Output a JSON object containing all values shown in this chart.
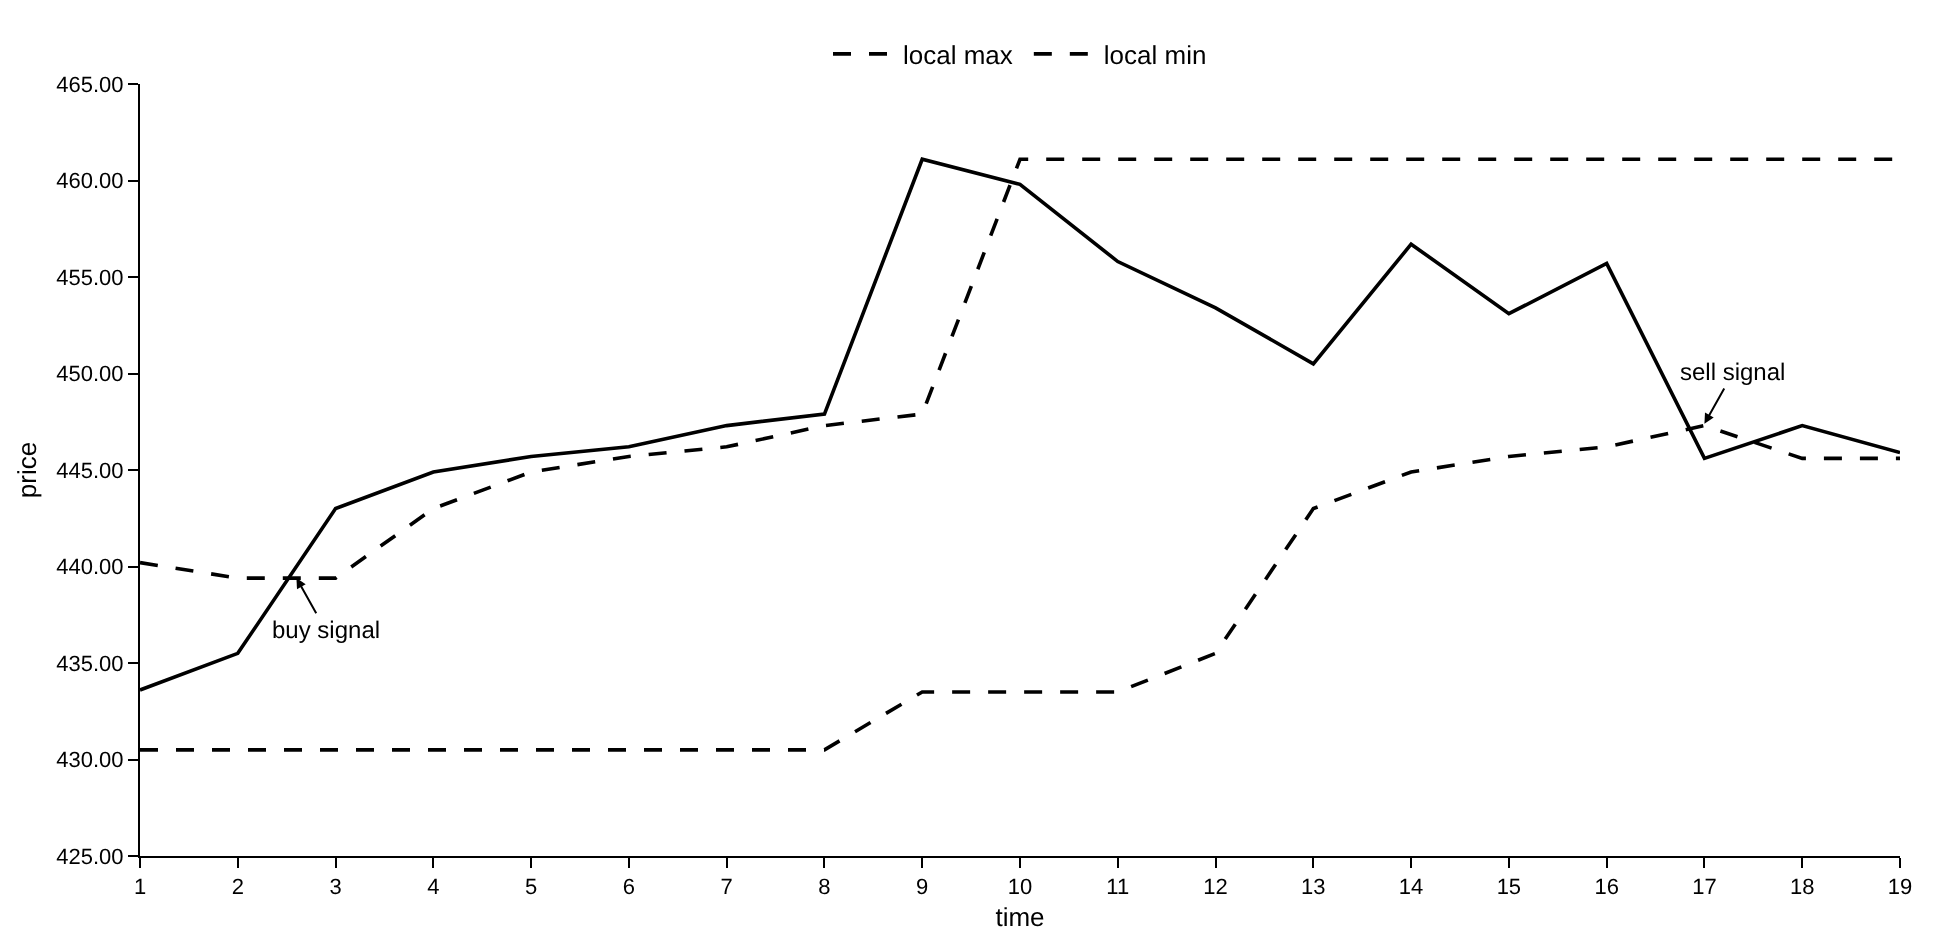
{
  "chart_data": {
    "type": "line",
    "xlabel": "time",
    "ylabel": "price",
    "x": [
      1,
      2,
      3,
      4,
      5,
      6,
      7,
      8,
      9,
      10,
      11,
      12,
      13,
      14,
      15,
      16,
      17,
      18,
      19
    ],
    "series": [
      {
        "color": "#000000",
        "line_style": "solid",
        "values": [
          433.6,
          435.5,
          443.0,
          444.9,
          445.7,
          446.2,
          447.3,
          447.9,
          461.1,
          459.8,
          455.8,
          453.4,
          450.5,
          456.7,
          453.1,
          455.7,
          445.6,
          447.3,
          445.9
        ]
      },
      {
        "name": "local max",
        "color": "#000000",
        "line_style": "dashed",
        "values": [
          440.2,
          439.4,
          439.4,
          443.0,
          444.9,
          445.7,
          446.2,
          447.3,
          447.9,
          461.1,
          461.1,
          461.1,
          461.1,
          461.1,
          461.1,
          461.1,
          461.1,
          461.1,
          461.1
        ]
      },
      {
        "name": "local min",
        "color": "#000000",
        "line_style": "dashed",
        "values": [
          430.5,
          430.5,
          430.5,
          430.5,
          430.5,
          430.5,
          430.5,
          430.5,
          433.5,
          433.5,
          433.5,
          435.5,
          443.0,
          444.9,
          445.7,
          446.2,
          447.3,
          445.6,
          445.6
        ]
      }
    ],
    "xlim": [
      1,
      19
    ],
    "xticks": [
      1,
      2,
      3,
      4,
      5,
      6,
      7,
      8,
      9,
      10,
      11,
      12,
      13,
      14,
      15,
      16,
      17,
      18,
      19
    ],
    "ylim": [
      425,
      465
    ],
    "yticks": [
      {
        "value": 425,
        "label": "425.00"
      },
      {
        "value": 430,
        "label": "430.00"
      },
      {
        "value": 435,
        "label": "435.00"
      },
      {
        "value": 440,
        "label": "440.00"
      },
      {
        "value": 445,
        "label": "445.00"
      },
      {
        "value": 450,
        "label": "450.00"
      },
      {
        "value": 455,
        "label": "455.00"
      },
      {
        "value": 460,
        "label": "460.00"
      },
      {
        "value": 465,
        "label": "465.00"
      }
    ],
    "annotations": [
      {
        "text": "buy signal",
        "x": 2.6,
        "y": 439.4
      },
      {
        "text": "sell signal",
        "x": 17,
        "y": 447.4
      }
    ],
    "grid": false,
    "legend": "top",
    "marker": "none"
  }
}
